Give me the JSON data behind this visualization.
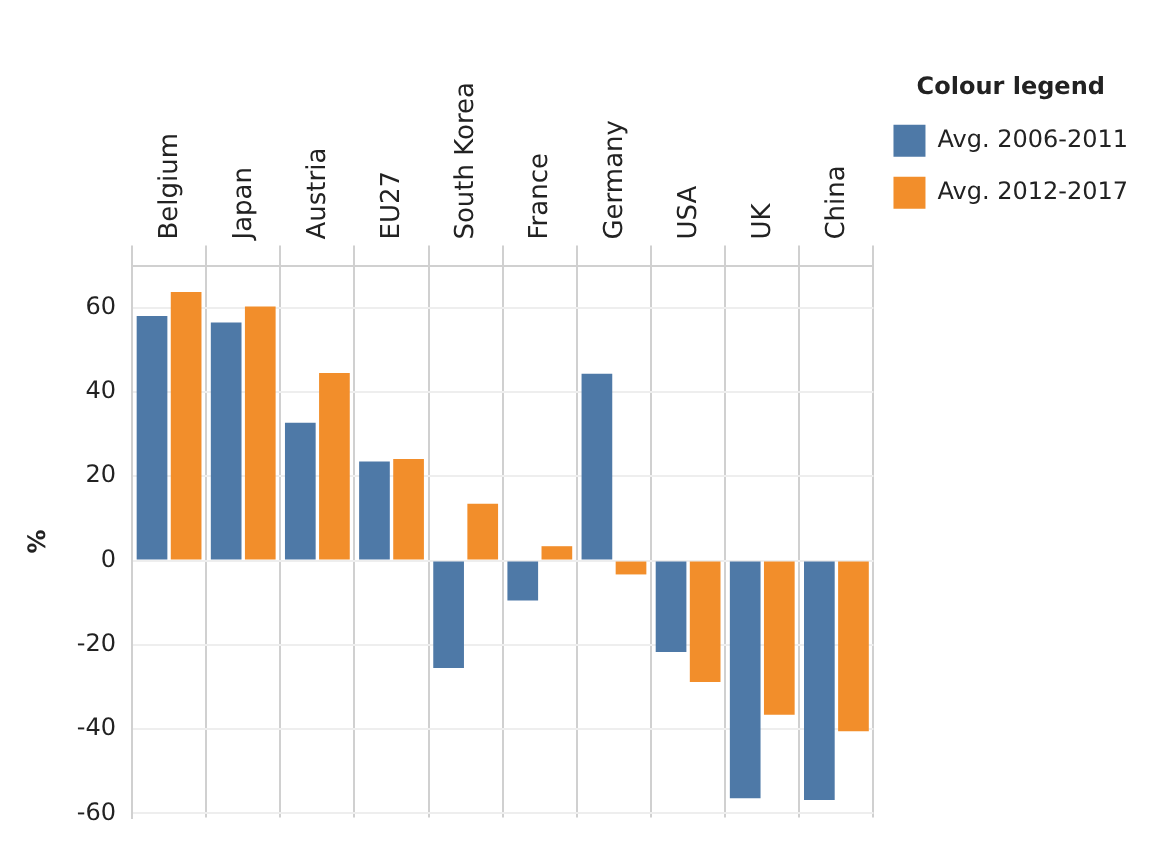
{
  "chart_data": {
    "type": "bar",
    "ylabel": "%",
    "legend_title": "Colour legend",
    "categories": [
      "Belgium",
      "Japan",
      "Austria",
      "EU27",
      "South Korea",
      "France",
      "Germany",
      "USA",
      "UK",
      "China"
    ],
    "series": [
      {
        "name": "Avg. 2006-2011",
        "color": "#4e79a7",
        "values": [
          58,
          56.5,
          32.7,
          23.5,
          -25.5,
          -9.5,
          44.3,
          -21.7,
          -56.4,
          -56.8
        ]
      },
      {
        "name": "Avg. 2012-2017",
        "color": "#f28e2b",
        "values": [
          63.7,
          60.3,
          44.5,
          24.1,
          13.5,
          3.4,
          -3.3,
          -28.8,
          -36.6,
          -40.5
        ]
      }
    ],
    "ylim": [
      -61,
      70
    ],
    "yticks": [
      -60,
      -40,
      -20,
      0,
      20,
      40,
      60
    ],
    "grid": true,
    "legend": "top right"
  }
}
